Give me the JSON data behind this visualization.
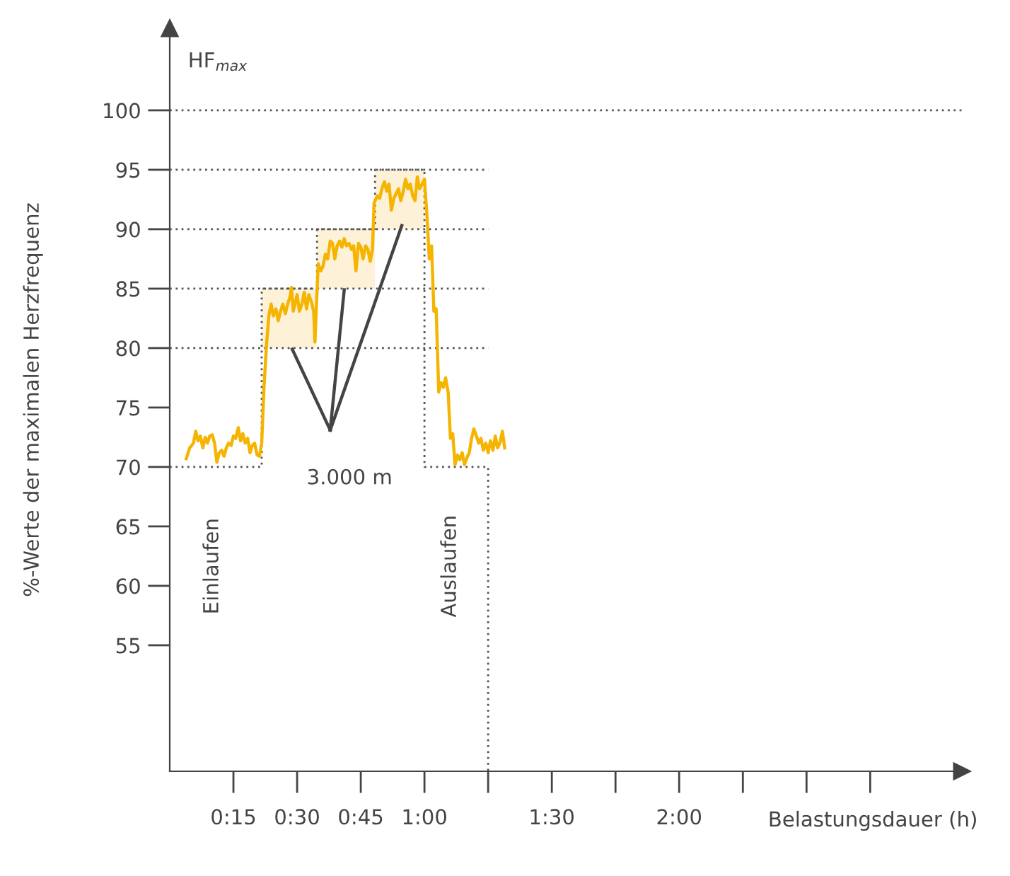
{
  "chart_data": {
    "type": "line",
    "ylabel": "%-Werte der maximalen Herzfrequenz",
    "xlabel": "Belastungsdauer (h)",
    "annotations": [
      "HF$_{max}$",
      "3.000 m",
      "Einlaufen",
      "Auslaufen"
    ],
    "xlim": [
      0,
      3.11
    ],
    "ylim": [
      44.4,
      106.9
    ],
    "xticks": [
      {
        "value": 0.25,
        "label": "0:15"
      },
      {
        "value": 0.5,
        "label": "0:30"
      },
      {
        "value": 0.75,
        "label": "0:45"
      },
      {
        "value": 1.0,
        "label": "1:00"
      },
      {
        "value": 1.25,
        "label": null
      },
      {
        "value": 1.5,
        "label": "1:30"
      },
      {
        "value": 1.75,
        "label": null
      },
      {
        "value": 2.0,
        "label": "2:00"
      },
      {
        "value": 2.25,
        "label": null
      },
      {
        "value": 2.5,
        "label": null
      },
      {
        "value": 2.75,
        "label": null
      }
    ],
    "yticks": [
      55,
      60,
      65,
      70,
      75,
      80,
      85,
      90,
      95,
      100
    ],
    "grid": false,
    "legend": false,
    "marker": "none",
    "ref_lines": [
      {
        "axis": "y",
        "value": 100,
        "label": null,
        "color": "#555555",
        "line_style": "dotted"
      }
    ],
    "series": [
      {
        "type": "line",
        "color": "#555555",
        "line_style": "dotted",
        "x": [
          0,
          1.25
        ],
        "values": [
          80,
          80
        ]
      },
      {
        "type": "line",
        "color": "#555555",
        "line_style": "dotted",
        "x": [
          0,
          1.25
        ],
        "values": [
          85,
          85
        ]
      },
      {
        "type": "line",
        "color": "#555555",
        "line_style": "dotted",
        "x": [
          0,
          1.25
        ],
        "values": [
          90,
          90
        ]
      },
      {
        "type": "line",
        "color": "#555555",
        "line_style": "dotted",
        "x": [
          0,
          1.25
        ],
        "values": [
          95,
          95
        ]
      },
      {
        "type": "step",
        "color": "#555555",
        "line_style": "dotted",
        "x": [
          0,
          0.361,
          0.578,
          0.806,
          1.0,
          1.25
        ],
        "values": [
          70,
          85,
          90,
          95,
          70,
          44.4
        ]
      },
      {
        "type": "line",
        "color": "#444444",
        "line_style": "solid",
        "x": [
          0.63,
          0.481
        ],
        "values": [
          73.1,
          79.9
        ]
      },
      {
        "type": "line",
        "color": "#444444",
        "line_style": "solid",
        "x": [
          0.63,
          0.685
        ],
        "values": [
          73.1,
          84.9
        ]
      },
      {
        "type": "line",
        "color": "#444444",
        "line_style": "solid",
        "x": [
          0.63,
          0.911
        ],
        "values": [
          73.1,
          90.3
        ]
      },
      {
        "color": "#f5b400",
        "line_style": "solid",
        "x": [
          0.065,
          0.078,
          0.093,
          0.102,
          0.111,
          0.12,
          0.13,
          0.139,
          0.148,
          0.157,
          0.167,
          0.176,
          0.185,
          0.194,
          0.204,
          0.213,
          0.222,
          0.231,
          0.241,
          0.25,
          0.259,
          0.269,
          0.278,
          0.287,
          0.296,
          0.306,
          0.315,
          0.324,
          0.333,
          0.343,
          0.352,
          0.361,
          0.37,
          0.38,
          0.389,
          0.398,
          0.407,
          0.417,
          0.426,
          0.435,
          0.444,
          0.454,
          0.463,
          0.472,
          0.478,
          0.485,
          0.494,
          0.5,
          0.509,
          0.519,
          0.528,
          0.537,
          0.546,
          0.556,
          0.565,
          0.57,
          0.578,
          0.583,
          0.593,
          0.602,
          0.611,
          0.62,
          0.63,
          0.639,
          0.648,
          0.657,
          0.667,
          0.676,
          0.685,
          0.694,
          0.704,
          0.713,
          0.722,
          0.731,
          0.741,
          0.75,
          0.759,
          0.769,
          0.778,
          0.787,
          0.796,
          0.802,
          0.815,
          0.824,
          0.833,
          0.843,
          0.852,
          0.861,
          0.87,
          0.88,
          0.889,
          0.898,
          0.907,
          0.917,
          0.926,
          0.935,
          0.944,
          0.954,
          0.963,
          0.972,
          0.981,
          0.991,
          1.0,
          1.009,
          1.019,
          1.028,
          1.037,
          1.046,
          1.056,
          1.065,
          1.074,
          1.083,
          1.093,
          1.102,
          1.111,
          1.12,
          1.13,
          1.139,
          1.148,
          1.157,
          1.167,
          1.176,
          1.185,
          1.194,
          1.204,
          1.213,
          1.222,
          1.231,
          1.241,
          1.25,
          1.259,
          1.269,
          1.278,
          1.287,
          1.296,
          1.306,
          1.315
        ],
        "values": [
          70.7,
          71.6,
          72.0,
          73.0,
          72.2,
          72.6,
          71.6,
          72.5,
          72.0,
          72.6,
          72.7,
          72.0,
          70.4,
          71.2,
          71.4,
          70.9,
          71.6,
          72.0,
          71.8,
          72.6,
          72.4,
          73.3,
          72.2,
          72.8,
          72.0,
          72.4,
          71.2,
          71.8,
          72.0,
          71.0,
          70.9,
          72.0,
          76.7,
          80.3,
          82.7,
          83.7,
          82.7,
          83.3,
          82.3,
          83.1,
          83.7,
          82.9,
          83.7,
          84.3,
          85.1,
          83.1,
          83.9,
          84.5,
          83.1,
          83.7,
          84.7,
          83.3,
          84.5,
          83.9,
          83.1,
          80.5,
          84.7,
          87.1,
          86.5,
          86.9,
          87.9,
          87.5,
          89.0,
          88.8,
          87.5,
          88.6,
          89.0,
          88.5,
          89.2,
          88.6,
          88.8,
          88.3,
          88.6,
          86.5,
          88.8,
          88.5,
          87.5,
          88.6,
          88.3,
          87.3,
          88.3,
          92.2,
          92.8,
          92.6,
          93.4,
          94.0,
          93.2,
          93.8,
          91.6,
          92.6,
          93.0,
          93.4,
          92.4,
          93.2,
          94.2,
          93.4,
          93.8,
          92.8,
          92.4,
          94.4,
          93.4,
          93.8,
          94.2,
          91.4,
          87.5,
          88.6,
          83.1,
          83.3,
          76.3,
          77.1,
          76.7,
          77.5,
          76.3,
          72.4,
          72.8,
          70.2,
          71.0,
          70.6,
          71.2,
          70.2,
          70.8,
          71.2,
          72.4,
          73.2,
          72.6,
          72.0,
          72.4,
          71.4,
          72.0,
          71.2,
          72.2,
          71.4,
          72.6,
          71.6,
          72.0,
          73.0,
          71.6
        ]
      }
    ]
  }
}
